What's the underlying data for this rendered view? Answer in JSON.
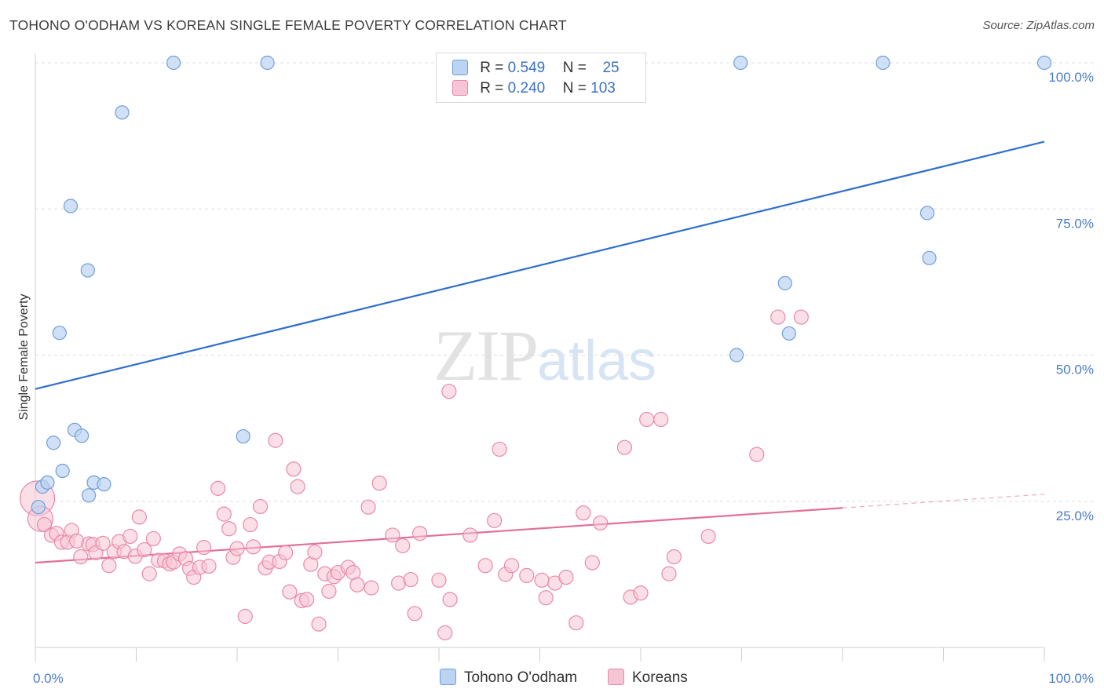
{
  "title": "TOHONO O'ODHAM VS KOREAN SINGLE FEMALE POVERTY CORRELATION CHART",
  "source": "Source: ZipAtlas.com",
  "watermark": {
    "zip": "ZIP",
    "atlas": "atlas"
  },
  "legend": {
    "series1": {
      "r_label": "R =",
      "r_value": "0.549",
      "n_label": "N =",
      "n_value": "25"
    },
    "series2": {
      "r_label": "R =",
      "r_value": "0.240",
      "n_label": "N =",
      "n_value": "103"
    }
  },
  "bottom_legend": {
    "series1": "Tohono O'odham",
    "series2": "Koreans"
  },
  "colors": {
    "blue_fill": "#bcd3f2",
    "blue_stroke": "#6f9fd8",
    "blue_line": "#2f6fcd",
    "pink_fill": "#f7c4d4",
    "pink_stroke": "#e889aa",
    "pink_line": "#e0709a",
    "grid": "#dddddd",
    "axis_label": "#4a7cc7"
  },
  "chart_data": {
    "type": "scatter",
    "title": "TOHONO O'ODHAM VS KOREAN SINGLE FEMALE POVERTY CORRELATION CHART",
    "xlabel": "",
    "ylabel": "Single Female Poverty",
    "xlim": [
      0,
      100
    ],
    "ylim": [
      0,
      100
    ],
    "x_tick_labels": [
      "0.0%",
      "100.0%"
    ],
    "y_tick_labels": [
      "25.0%",
      "50.0%",
      "75.0%",
      "100.0%"
    ],
    "y_ticks": [
      25,
      50,
      75,
      100
    ],
    "grid": true,
    "legend_position": "top-center",
    "series": [
      {
        "name": "Tohono O'odham",
        "r": 0.549,
        "n": 25,
        "trend": {
          "x": [
            0,
            100
          ],
          "y": [
            44.2,
            86.5
          ]
        },
        "points": [
          [
            0.3,
            24.0
          ],
          [
            0.7,
            27.5
          ],
          [
            1.2,
            28.2
          ],
          [
            1.8,
            35.0
          ],
          [
            2.4,
            53.8
          ],
          [
            2.7,
            30.2
          ],
          [
            3.5,
            75.5
          ],
          [
            3.9,
            37.2
          ],
          [
            4.6,
            36.2
          ],
          [
            5.2,
            64.5
          ],
          [
            5.3,
            26.0
          ],
          [
            5.8,
            28.2
          ],
          [
            6.8,
            27.9
          ],
          [
            8.6,
            91.5
          ],
          [
            13.7,
            100.0
          ],
          [
            20.6,
            36.1
          ],
          [
            23.0,
            100.0
          ],
          [
            69.5,
            50.0
          ],
          [
            69.9,
            100.0
          ],
          [
            74.3,
            62.3
          ],
          [
            74.7,
            53.7
          ],
          [
            84.0,
            100.0
          ],
          [
            88.4,
            74.3
          ],
          [
            88.6,
            66.6
          ],
          [
            100.0,
            100.0
          ]
        ]
      },
      {
        "name": "Koreans",
        "r": 0.24,
        "n": 103,
        "trend": {
          "x": [
            0,
            100
          ],
          "y": [
            14.5,
            26.2
          ],
          "solid_until": 80
        },
        "points": [
          [
            0.2,
            25.5
          ],
          [
            0.5,
            22.0
          ],
          [
            0.9,
            21.0
          ],
          [
            1.6,
            19.2
          ],
          [
            2.1,
            19.5
          ],
          [
            2.6,
            18.0
          ],
          [
            3.2,
            18.0
          ],
          [
            3.6,
            20.0
          ],
          [
            4.1,
            18.2
          ],
          [
            4.5,
            15.5
          ],
          [
            5.3,
            17.7
          ],
          [
            5.7,
            17.6
          ],
          [
            6.0,
            16.2
          ],
          [
            6.7,
            17.8
          ],
          [
            7.3,
            14.0
          ],
          [
            7.8,
            16.4
          ],
          [
            8.3,
            18.1
          ],
          [
            8.8,
            16.4
          ],
          [
            9.4,
            19.0
          ],
          [
            9.9,
            15.6
          ],
          [
            10.3,
            22.3
          ],
          [
            10.8,
            16.7
          ],
          [
            11.3,
            12.6
          ],
          [
            11.7,
            18.6
          ],
          [
            12.2,
            14.9
          ],
          [
            12.8,
            14.8
          ],
          [
            13.3,
            14.3
          ],
          [
            13.7,
            14.6
          ],
          [
            14.3,
            16.0
          ],
          [
            14.9,
            15.2
          ],
          [
            15.3,
            13.5
          ],
          [
            15.7,
            12.0
          ],
          [
            16.3,
            13.7
          ],
          [
            16.7,
            17.1
          ],
          [
            17.2,
            13.9
          ],
          [
            18.1,
            27.2
          ],
          [
            18.7,
            22.8
          ],
          [
            19.2,
            20.3
          ],
          [
            19.6,
            15.4
          ],
          [
            20.0,
            16.9
          ],
          [
            20.8,
            5.3
          ],
          [
            21.3,
            21.0
          ],
          [
            21.6,
            17.2
          ],
          [
            22.3,
            24.1
          ],
          [
            22.8,
            13.6
          ],
          [
            23.2,
            14.6
          ],
          [
            23.8,
            35.4
          ],
          [
            24.2,
            14.7
          ],
          [
            24.8,
            16.2
          ],
          [
            25.2,
            9.5
          ],
          [
            25.6,
            30.5
          ],
          [
            26.0,
            27.5
          ],
          [
            26.4,
            8.0
          ],
          [
            26.9,
            8.2
          ],
          [
            27.3,
            14.2
          ],
          [
            27.7,
            16.3
          ],
          [
            28.1,
            4.0
          ],
          [
            28.7,
            12.6
          ],
          [
            29.1,
            9.6
          ],
          [
            29.6,
            12.1
          ],
          [
            30.0,
            12.8
          ],
          [
            31.0,
            13.7
          ],
          [
            31.5,
            12.8
          ],
          [
            31.9,
            10.7
          ],
          [
            33.0,
            24.0
          ],
          [
            33.3,
            10.2
          ],
          [
            34.1,
            28.1
          ],
          [
            35.4,
            19.2
          ],
          [
            36.0,
            11.0
          ],
          [
            36.4,
            17.4
          ],
          [
            37.2,
            11.6
          ],
          [
            37.6,
            5.8
          ],
          [
            38.1,
            19.5
          ],
          [
            40.0,
            11.5
          ],
          [
            40.6,
            2.5
          ],
          [
            41.1,
            8.2
          ],
          [
            43.1,
            19.2
          ],
          [
            44.6,
            14.0
          ],
          [
            45.5,
            21.7
          ],
          [
            46.0,
            33.9
          ],
          [
            46.6,
            12.5
          ],
          [
            47.2,
            14.0
          ],
          [
            48.7,
            12.3
          ],
          [
            50.2,
            11.5
          ],
          [
            50.6,
            8.5
          ],
          [
            51.5,
            11.0
          ],
          [
            52.6,
            12.0
          ],
          [
            53.6,
            4.2
          ],
          [
            54.3,
            23.0
          ],
          [
            55.2,
            14.5
          ],
          [
            56.0,
            21.3
          ],
          [
            58.4,
            34.2
          ],
          [
            59.0,
            8.6
          ],
          [
            60.6,
            39.0
          ],
          [
            62.0,
            39.0
          ],
          [
            62.8,
            12.6
          ],
          [
            63.3,
            15.5
          ],
          [
            66.7,
            19.0
          ],
          [
            71.5,
            33.0
          ],
          [
            73.6,
            56.5
          ],
          [
            75.9,
            56.5
          ],
          [
            41.0,
            43.8
          ],
          [
            60.0,
            9.3
          ]
        ]
      }
    ]
  }
}
